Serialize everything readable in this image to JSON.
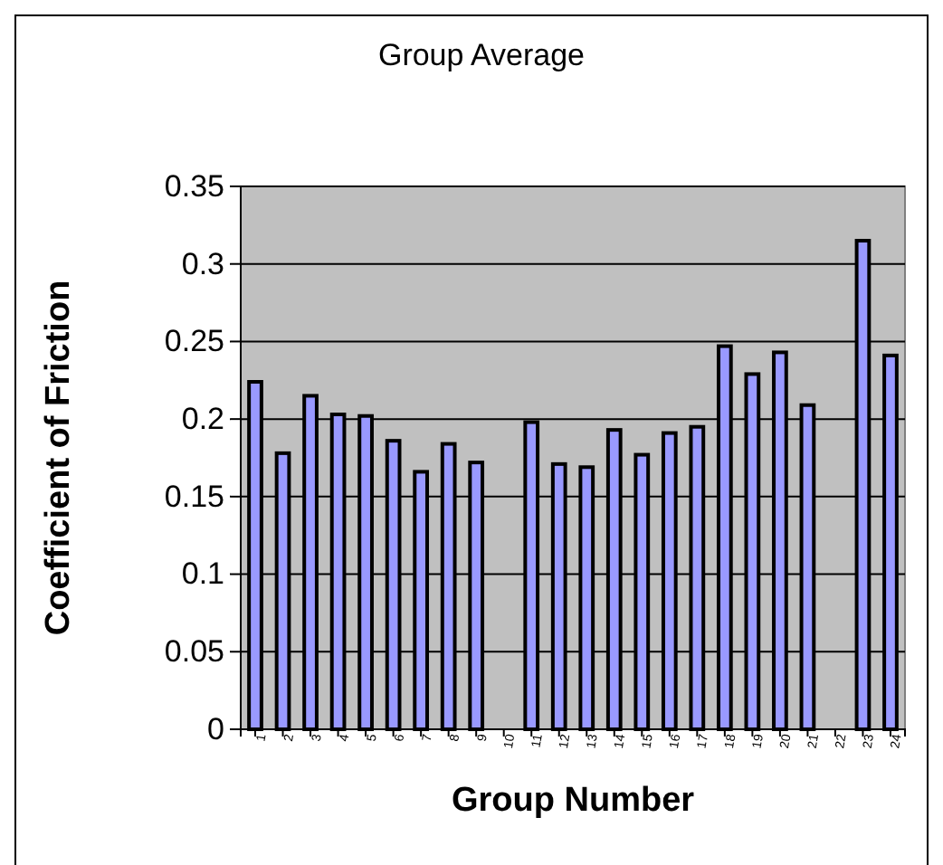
{
  "chart_data": {
    "type": "bar",
    "title": "Group Average",
    "xlabel": "Group Number",
    "ylabel": "Coefficient of Friction",
    "categories": [
      "1",
      "2",
      "3",
      "4",
      "5",
      "6",
      "7",
      "8",
      "9",
      "10",
      "11",
      "12",
      "13",
      "14",
      "15",
      "16",
      "17",
      "18",
      "19",
      "20",
      "21",
      "22",
      "23",
      "24"
    ],
    "values": [
      0.224,
      0.178,
      0.215,
      0.203,
      0.202,
      0.186,
      0.166,
      0.184,
      0.172,
      null,
      0.198,
      0.171,
      0.169,
      0.193,
      0.177,
      0.191,
      0.195,
      0.247,
      0.229,
      0.243,
      0.209,
      null,
      0.315,
      0.241
    ],
    "color": "#9999ff",
    "ylim": [
      0,
      0.35
    ],
    "yticks": [
      0,
      0.05,
      0.1,
      0.15,
      0.2,
      0.25,
      0.3,
      0.35
    ],
    "grid": "y"
  }
}
